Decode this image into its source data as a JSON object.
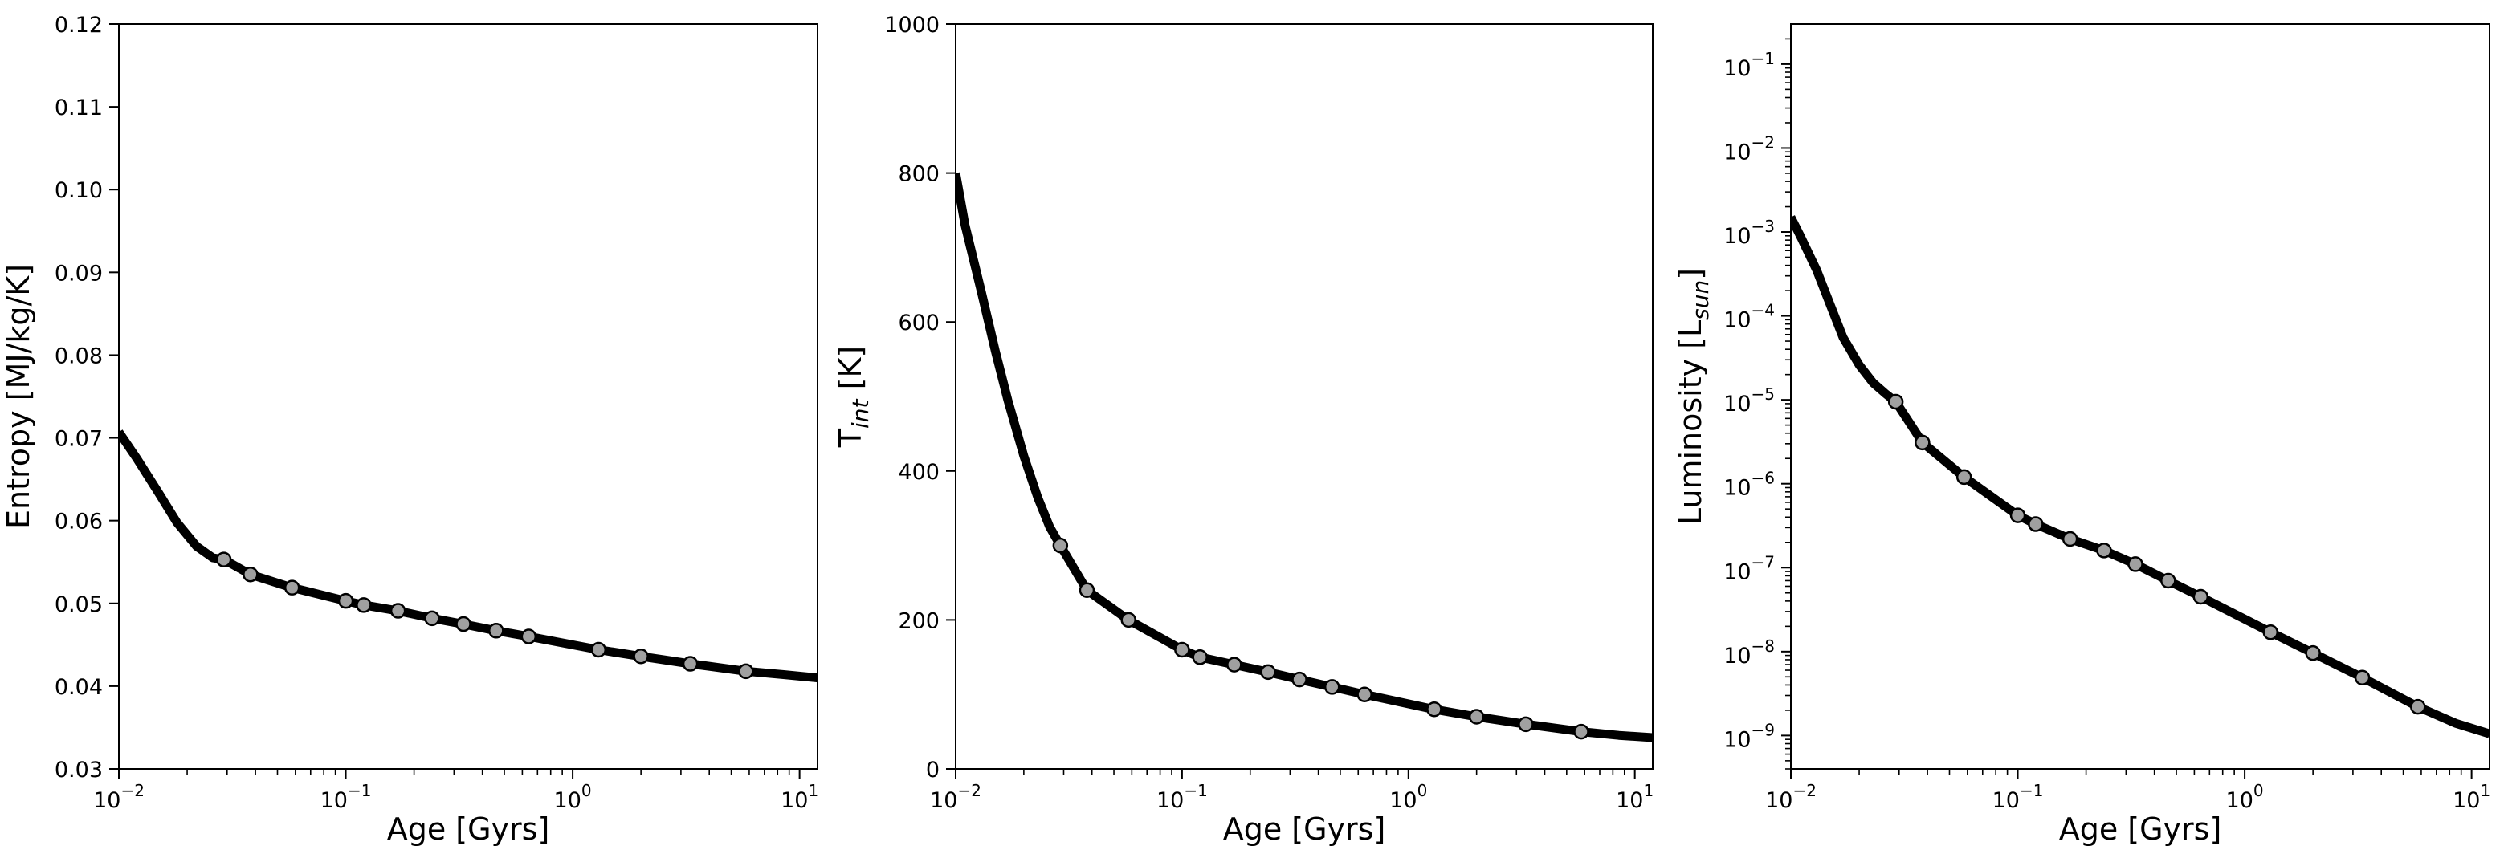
{
  "chart_data": [
    {
      "type": "line",
      "xlabel": "Age [Gyrs]",
      "ylabel": "Entropy [MJ/kg/K]",
      "xscale": "log",
      "yscale": "linear",
      "xlim": [
        0.01,
        12
      ],
      "ylim": [
        0.03,
        0.12
      ],
      "xticks": [
        {
          "value": 0.01,
          "base": "10",
          "exp": "−2"
        },
        {
          "value": 0.1,
          "base": "10",
          "exp": "−1"
        },
        {
          "value": 1,
          "base": "10",
          "exp": "0"
        },
        {
          "value": 10,
          "base": "10",
          "exp": "1"
        }
      ],
      "yticks": [
        {
          "value": 0.03,
          "label": "0.03"
        },
        {
          "value": 0.04,
          "label": "0.04"
        },
        {
          "value": 0.05,
          "label": "0.05"
        },
        {
          "value": 0.06,
          "label": "0.06"
        },
        {
          "value": 0.07,
          "label": "0.07"
        },
        {
          "value": 0.08,
          "label": "0.08"
        },
        {
          "value": 0.09,
          "label": "0.09"
        },
        {
          "value": 0.1,
          "label": "0.10"
        },
        {
          "value": 0.11,
          "label": "0.11"
        },
        {
          "value": 0.12,
          "label": "0.12"
        }
      ],
      "line": {
        "x": [
          0.01,
          0.012,
          0.015,
          0.018,
          0.022,
          0.026,
          0.029,
          0.038,
          0.058,
          0.1,
          0.12,
          0.17,
          0.24,
          0.33,
          0.46,
          0.64,
          1.3,
          2.0,
          3.3,
          5.8,
          8.5,
          12
        ],
        "y": [
          0.0707,
          0.0675,
          0.0633,
          0.0598,
          0.0569,
          0.0555,
          0.0553,
          0.0535,
          0.0519,
          0.0503,
          0.0498,
          0.0491,
          0.0482,
          0.0475,
          0.0467,
          0.046,
          0.0444,
          0.0436,
          0.0427,
          0.0418,
          0.0414,
          0.041
        ]
      },
      "markers": {
        "x": [
          0.029,
          0.038,
          0.058,
          0.1,
          0.12,
          0.17,
          0.24,
          0.33,
          0.46,
          0.64,
          1.3,
          2.0,
          3.3,
          5.8
        ],
        "y": [
          0.0553,
          0.0535,
          0.0519,
          0.0503,
          0.0498,
          0.0491,
          0.0482,
          0.0475,
          0.0467,
          0.046,
          0.0444,
          0.0436,
          0.0427,
          0.0418
        ]
      },
      "line_color": "#000000",
      "marker_color": "#a0a0a0"
    },
    {
      "type": "line",
      "xlabel": "Age [Gyrs]",
      "ylabel_main": "T",
      "ylabel_sub": "int",
      "ylabel_rest": " [K]",
      "xscale": "log",
      "yscale": "linear",
      "xlim": [
        0.01,
        12
      ],
      "ylim": [
        0,
        1000
      ],
      "xticks": [
        {
          "value": 0.01,
          "base": "10",
          "exp": "−2"
        },
        {
          "value": 0.1,
          "base": "10",
          "exp": "−1"
        },
        {
          "value": 1,
          "base": "10",
          "exp": "0"
        },
        {
          "value": 10,
          "base": "10",
          "exp": "1"
        }
      ],
      "yticks": [
        {
          "value": 0,
          "label": "0"
        },
        {
          "value": 200,
          "label": "200"
        },
        {
          "value": 400,
          "label": "400"
        },
        {
          "value": 600,
          "label": "600"
        },
        {
          "value": 800,
          "label": "800"
        },
        {
          "value": 1000,
          "label": "1000"
        }
      ],
      "line": {
        "x": [
          0.01,
          0.011,
          0.013,
          0.015,
          0.017,
          0.02,
          0.023,
          0.026,
          0.029,
          0.038,
          0.058,
          0.1,
          0.12,
          0.17,
          0.24,
          0.33,
          0.46,
          0.64,
          1.3,
          2.0,
          3.3,
          5.8,
          8.5,
          12
        ],
        "y": [
          800,
          730,
          640,
          560,
          495,
          420,
          365,
          325,
          300,
          240,
          200,
          160,
          150,
          140,
          130,
          120,
          110,
          100,
          80,
          70,
          60,
          50,
          45,
          42
        ]
      },
      "markers": {
        "x": [
          0.029,
          0.038,
          0.058,
          0.1,
          0.12,
          0.17,
          0.24,
          0.33,
          0.46,
          0.64,
          1.3,
          2.0,
          3.3,
          5.8
        ],
        "y": [
          300,
          240,
          200,
          160,
          150,
          140,
          130,
          120,
          110,
          100,
          80,
          70,
          60,
          50
        ]
      },
      "line_color": "#000000",
      "marker_color": "#a0a0a0"
    },
    {
      "type": "line",
      "xlabel": "Age [Gyrs]",
      "ylabel_main": "Luminosity [L",
      "ylabel_sub": "sun",
      "ylabel_rest": "]",
      "xscale": "log",
      "yscale": "log",
      "xlim": [
        0.01,
        12
      ],
      "ylim": [
        4e-10,
        0.3
      ],
      "xticks": [
        {
          "value": 0.01,
          "base": "10",
          "exp": "−2"
        },
        {
          "value": 0.1,
          "base": "10",
          "exp": "−1"
        },
        {
          "value": 1,
          "base": "10",
          "exp": "0"
        },
        {
          "value": 10,
          "base": "10",
          "exp": "1"
        }
      ],
      "yticks": [
        {
          "value": 1e-09,
          "base": "10",
          "exp": "−9"
        },
        {
          "value": 1e-08,
          "base": "10",
          "exp": "−8"
        },
        {
          "value": 1e-07,
          "base": "10",
          "exp": "−7"
        },
        {
          "value": 1e-06,
          "base": "10",
          "exp": "−6"
        },
        {
          "value": 1e-05,
          "base": "10",
          "exp": "−5"
        },
        {
          "value": 0.0001,
          "base": "10",
          "exp": "−4"
        },
        {
          "value": 0.001,
          "base": "10",
          "exp": "−3"
        },
        {
          "value": 0.01,
          "base": "10",
          "exp": "−2"
        },
        {
          "value": 0.1,
          "base": "10",
          "exp": "−1"
        }
      ],
      "line": {
        "x": [
          0.01,
          0.011,
          0.013,
          0.015,
          0.017,
          0.02,
          0.023,
          0.026,
          0.029,
          0.038,
          0.058,
          0.1,
          0.12,
          0.17,
          0.24,
          0.33,
          0.46,
          0.64,
          1.3,
          2.0,
          3.3,
          5.8,
          8.5,
          12
        ],
        "y": [
          0.0015,
          0.0009,
          0.00035,
          0.00013,
          5.5e-05,
          2.6e-05,
          1.6e-05,
          1.2e-05,
          9.5e-06,
          3.1e-06,
          1.2e-06,
          4.2e-07,
          3.3e-07,
          2.2e-07,
          1.6e-07,
          1.1e-07,
          7e-08,
          4.5e-08,
          1.7e-08,
          9.6e-09,
          4.9e-09,
          2.2e-09,
          1.4e-09,
          1.05e-09
        ]
      },
      "markers": {
        "x": [
          0.029,
          0.038,
          0.058,
          0.1,
          0.12,
          0.17,
          0.24,
          0.33,
          0.46,
          0.64,
          1.3,
          2.0,
          3.3,
          5.8
        ],
        "y": [
          9.5e-06,
          3.1e-06,
          1.2e-06,
          4.2e-07,
          3.3e-07,
          2.2e-07,
          1.6e-07,
          1.1e-07,
          7e-08,
          4.5e-08,
          1.7e-08,
          9.6e-09,
          4.9e-09,
          2.2e-09
        ]
      },
      "line_color": "#000000",
      "marker_color": "#a0a0a0"
    }
  ]
}
